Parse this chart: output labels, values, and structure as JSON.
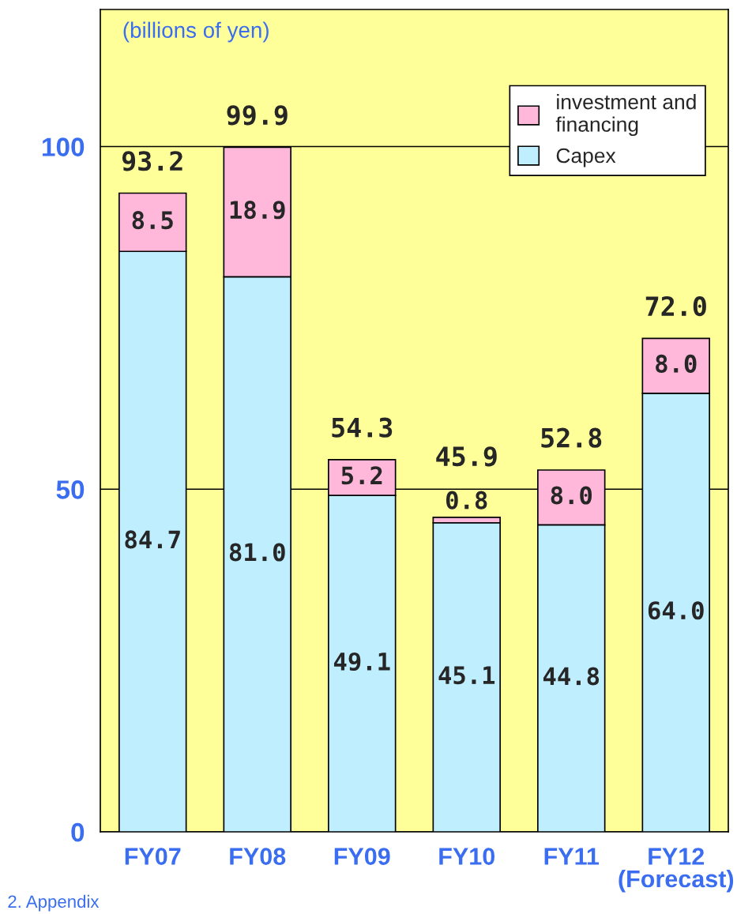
{
  "chart_data": {
    "type": "bar",
    "stacked": true,
    "ylabel": "(billions of yen)",
    "categories": [
      "FY07",
      "FY08",
      "FY09",
      "FY10",
      "FY11",
      "FY12\n(Forecast)"
    ],
    "series": [
      {
        "name": "Capex",
        "color": "#bfeeff",
        "values": [
          84.7,
          81.0,
          49.1,
          45.1,
          44.8,
          64.0
        ],
        "value_labels": [
          "84.7",
          "81.0",
          "49.1",
          "45.1",
          "44.8",
          "64.0"
        ]
      },
      {
        "name": "investment and\nfinancing",
        "color": "#ffb8da",
        "values": [
          8.5,
          18.9,
          5.2,
          0.8,
          8.0,
          8.0
        ],
        "value_labels": [
          "8.5",
          "18.9",
          "5.2",
          "0.8",
          "8.0",
          "8.0"
        ]
      }
    ],
    "totals": [
      "93.2",
      "99.9",
      "54.3",
      "45.9",
      "52.8",
      "72.0"
    ],
    "ylim": [
      0,
      120
    ],
    "yticks": [
      0,
      50,
      100
    ],
    "grid": "y",
    "legend": "top right",
    "annotations": [
      "2. Appendix"
    ]
  }
}
